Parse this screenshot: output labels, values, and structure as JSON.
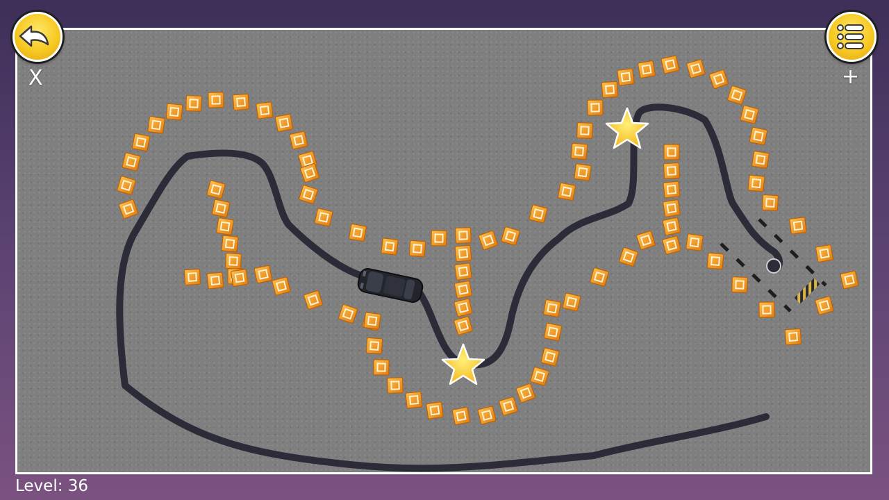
{
  "hud": {
    "close_label": "X",
    "add_label": "+",
    "level_label": "Level:",
    "level_value": "36",
    "back_icon": "back-arrow-icon",
    "menu_icon": "menu-list-icon"
  },
  "game": {
    "stars_on_board": 2,
    "colors": {
      "board": "#7f7f80",
      "path": "#2b2c38",
      "cone": "#f39a1a",
      "star": "#ffd23a",
      "button": "#f7c923"
    }
  }
}
